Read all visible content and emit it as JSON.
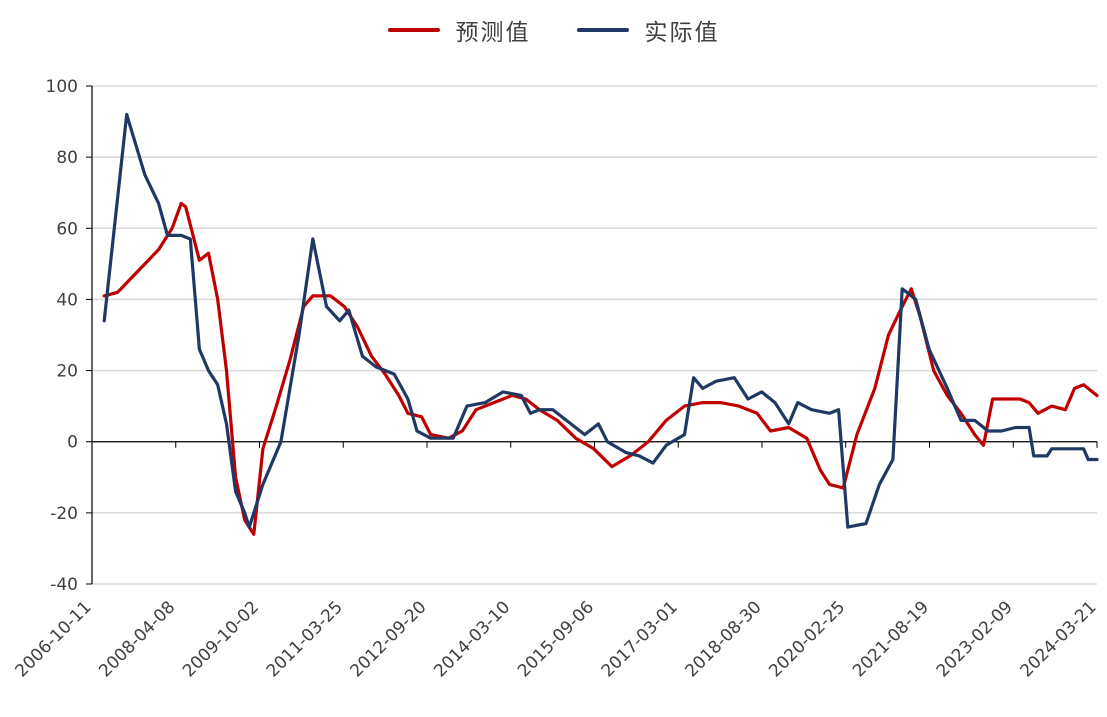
{
  "chart_data": {
    "type": "line",
    "title": "",
    "xlabel": "",
    "ylabel": "",
    "ylim": [
      -40,
      100
    ],
    "yticks": [
      -40,
      -20,
      0,
      20,
      40,
      60,
      80,
      100
    ],
    "grid": "horizontal",
    "legend": "top-center",
    "x_tick_labels": [
      "2006-10-11",
      "2008-04-08",
      "2009-10-02",
      "2011-03-25",
      "2012-09-20",
      "2014-03-10",
      "2015-09-06",
      "2017-03-01",
      "2018-08-30",
      "2020-02-25",
      "2021-08-19",
      "2023-02-09",
      "2024-03-21"
    ],
    "series": [
      {
        "name": "预测值",
        "color": "#C00000",
        "points": [
          [
            "2007-01-01",
            41
          ],
          [
            "2007-04-01",
            42
          ],
          [
            "2007-07-01",
            46
          ],
          [
            "2007-10-01",
            50
          ],
          [
            "2008-01-01",
            54
          ],
          [
            "2008-04-01",
            60
          ],
          [
            "2008-06-01",
            67
          ],
          [
            "2008-07-01",
            66
          ],
          [
            "2008-10-01",
            51
          ],
          [
            "2008-12-01",
            53
          ],
          [
            "2009-02-01",
            40
          ],
          [
            "2009-04-01",
            20
          ],
          [
            "2009-06-01",
            -10
          ],
          [
            "2009-08-01",
            -22
          ],
          [
            "2009-10-01",
            -26
          ],
          [
            "2009-12-01",
            -2
          ],
          [
            "2010-03-01",
            10
          ],
          [
            "2010-06-01",
            23
          ],
          [
            "2010-09-01",
            38
          ],
          [
            "2010-11-01",
            41
          ],
          [
            "2011-03-01",
            41
          ],
          [
            "2011-06-01",
            38
          ],
          [
            "2011-09-01",
            32
          ],
          [
            "2011-12-01",
            24
          ],
          [
            "2012-03-01",
            19
          ],
          [
            "2012-06-01",
            13
          ],
          [
            "2012-08-01",
            8
          ],
          [
            "2012-11-01",
            7
          ],
          [
            "2013-01-01",
            2
          ],
          [
            "2013-05-01",
            1
          ],
          [
            "2013-08-01",
            3
          ],
          [
            "2013-11-01",
            9
          ],
          [
            "2014-03-01",
            11
          ],
          [
            "2014-07-01",
            13
          ],
          [
            "2014-10-01",
            12
          ],
          [
            "2015-01-01",
            9
          ],
          [
            "2015-05-01",
            6
          ],
          [
            "2015-09-01",
            1
          ],
          [
            "2016-01-01",
            -2
          ],
          [
            "2016-05-01",
            -7
          ],
          [
            "2016-09-01",
            -4
          ],
          [
            "2017-01-01",
            0
          ],
          [
            "2017-05-01",
            6
          ],
          [
            "2017-09-01",
            10
          ],
          [
            "2018-01-01",
            11
          ],
          [
            "2018-05-01",
            11
          ],
          [
            "2018-09-01",
            10
          ],
          [
            "2019-01-01",
            8
          ],
          [
            "2019-04-01",
            3
          ],
          [
            "2019-08-01",
            4
          ],
          [
            "2019-12-01",
            1
          ],
          [
            "2020-03-01",
            -8
          ],
          [
            "2020-05-01",
            -12
          ],
          [
            "2020-08-01",
            -13
          ],
          [
            "2020-11-01",
            2
          ],
          [
            "2021-03-01",
            15
          ],
          [
            "2021-06-01",
            30
          ],
          [
            "2021-09-01",
            38
          ],
          [
            "2021-11-01",
            43
          ],
          [
            "2022-01-01",
            35
          ],
          [
            "2022-04-01",
            20
          ],
          [
            "2022-07-01",
            13
          ],
          [
            "2022-10-01",
            8
          ],
          [
            "2023-01-01",
            2
          ],
          [
            "2023-03-01",
            -1
          ],
          [
            "2023-05-01",
            12
          ],
          [
            "2023-08-01",
            12
          ],
          [
            "2023-11-01",
            12
          ],
          [
            "2024-01-01",
            11
          ],
          [
            "2024-03-01",
            8
          ],
          [
            "2024-06-01",
            10
          ],
          [
            "2024-09-01",
            9
          ],
          [
            "2024-11-01",
            15
          ],
          [
            "2025-01-01",
            16
          ],
          [
            "2025-03-01",
            14
          ],
          [
            "2025-04-01",
            13
          ]
        ]
      },
      {
        "name": "实际值",
        "color": "#1F3864",
        "points": [
          [
            "2007-01-01",
            34
          ],
          [
            "2007-06-01",
            92
          ],
          [
            "2007-10-01",
            75
          ],
          [
            "2008-01-01",
            67
          ],
          [
            "2008-03-01",
            58
          ],
          [
            "2008-06-01",
            58
          ],
          [
            "2008-08-01",
            57
          ],
          [
            "2008-10-01",
            26
          ],
          [
            "2008-12-01",
            20
          ],
          [
            "2009-02-01",
            16
          ],
          [
            "2009-04-01",
            5
          ],
          [
            "2009-06-01",
            -14
          ],
          [
            "2009-08-01",
            -20
          ],
          [
            "2009-09-01",
            -24
          ],
          [
            "2009-12-01",
            -12
          ],
          [
            "2010-04-01",
            0
          ],
          [
            "2010-08-01",
            30
          ],
          [
            "2010-11-01",
            57
          ],
          [
            "2011-02-01",
            38
          ],
          [
            "2011-05-01",
            34
          ],
          [
            "2011-07-01",
            37
          ],
          [
            "2011-10-01",
            24
          ],
          [
            "2012-01-01",
            21
          ],
          [
            "2012-05-01",
            19
          ],
          [
            "2012-08-01",
            12
          ],
          [
            "2012-10-01",
            3
          ],
          [
            "2013-01-01",
            1
          ],
          [
            "2013-06-01",
            1
          ],
          [
            "2013-09-01",
            10
          ],
          [
            "2014-01-01",
            11
          ],
          [
            "2014-05-01",
            14
          ],
          [
            "2014-09-01",
            13
          ],
          [
            "2014-11-01",
            8
          ],
          [
            "2015-01-01",
            9
          ],
          [
            "2015-04-01",
            9
          ],
          [
            "2015-07-01",
            6
          ],
          [
            "2015-11-01",
            2
          ],
          [
            "2016-02-01",
            5
          ],
          [
            "2016-04-01",
            0
          ],
          [
            "2016-08-01",
            -3
          ],
          [
            "2016-11-01",
            -4
          ],
          [
            "2017-02-01",
            -6
          ],
          [
            "2017-05-01",
            -1
          ],
          [
            "2017-09-01",
            2
          ],
          [
            "2017-11-01",
            18
          ],
          [
            "2018-01-01",
            15
          ],
          [
            "2018-04-01",
            17
          ],
          [
            "2018-08-01",
            18
          ],
          [
            "2018-11-01",
            12
          ],
          [
            "2019-02-01",
            14
          ],
          [
            "2019-05-01",
            11
          ],
          [
            "2019-08-01",
            5
          ],
          [
            "2019-10-01",
            11
          ],
          [
            "2020-01-01",
            9
          ],
          [
            "2020-05-01",
            8
          ],
          [
            "2020-07-01",
            9
          ],
          [
            "2020-09-01",
            -24
          ],
          [
            "2021-01-01",
            -23
          ],
          [
            "2021-04-01",
            -12
          ],
          [
            "2021-07-01",
            -5
          ],
          [
            "2021-09-01",
            43
          ],
          [
            "2021-12-01",
            40
          ],
          [
            "2022-03-01",
            26
          ],
          [
            "2022-07-01",
            15
          ],
          [
            "2022-10-01",
            6
          ],
          [
            "2023-01-01",
            6
          ],
          [
            "2023-04-01",
            3
          ],
          [
            "2023-07-01",
            3
          ],
          [
            "2023-10-01",
            4
          ],
          [
            "2024-01-01",
            4
          ],
          [
            "2024-02-01",
            -4
          ],
          [
            "2024-05-01",
            -4
          ],
          [
            "2024-06-01",
            -2
          ],
          [
            "2024-11-01",
            -2
          ],
          [
            "2025-01-01",
            -2
          ],
          [
            "2025-02-01",
            -5
          ],
          [
            "2025-04-01",
            -5
          ]
        ]
      }
    ]
  }
}
